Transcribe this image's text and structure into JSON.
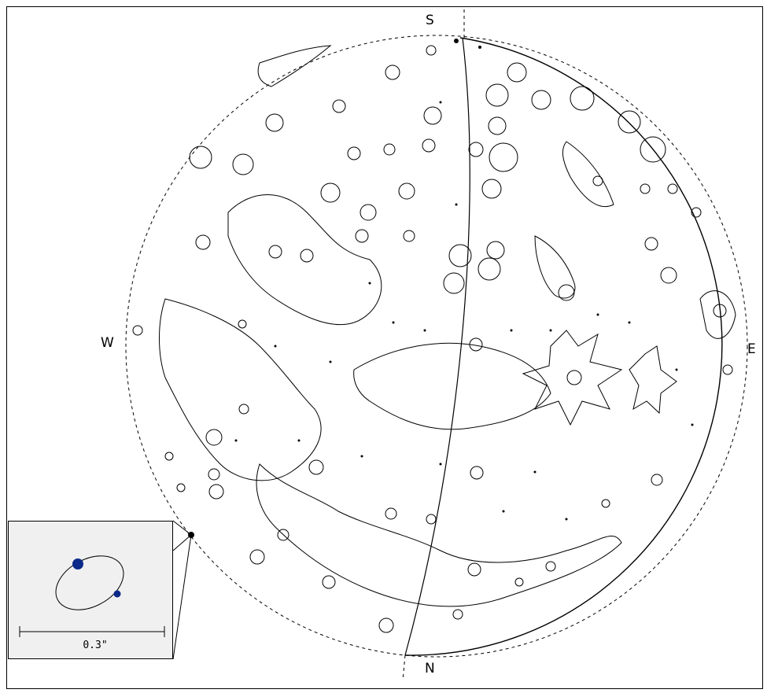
{
  "compass": {
    "south": "S",
    "north": "N",
    "west": "W",
    "east": "E"
  },
  "inset": {
    "scale_label": "0.3\""
  },
  "colors": {
    "stroke": "#000000",
    "inset_bg": "#f0f0f0",
    "moon_dot": "#0b2a8a"
  }
}
